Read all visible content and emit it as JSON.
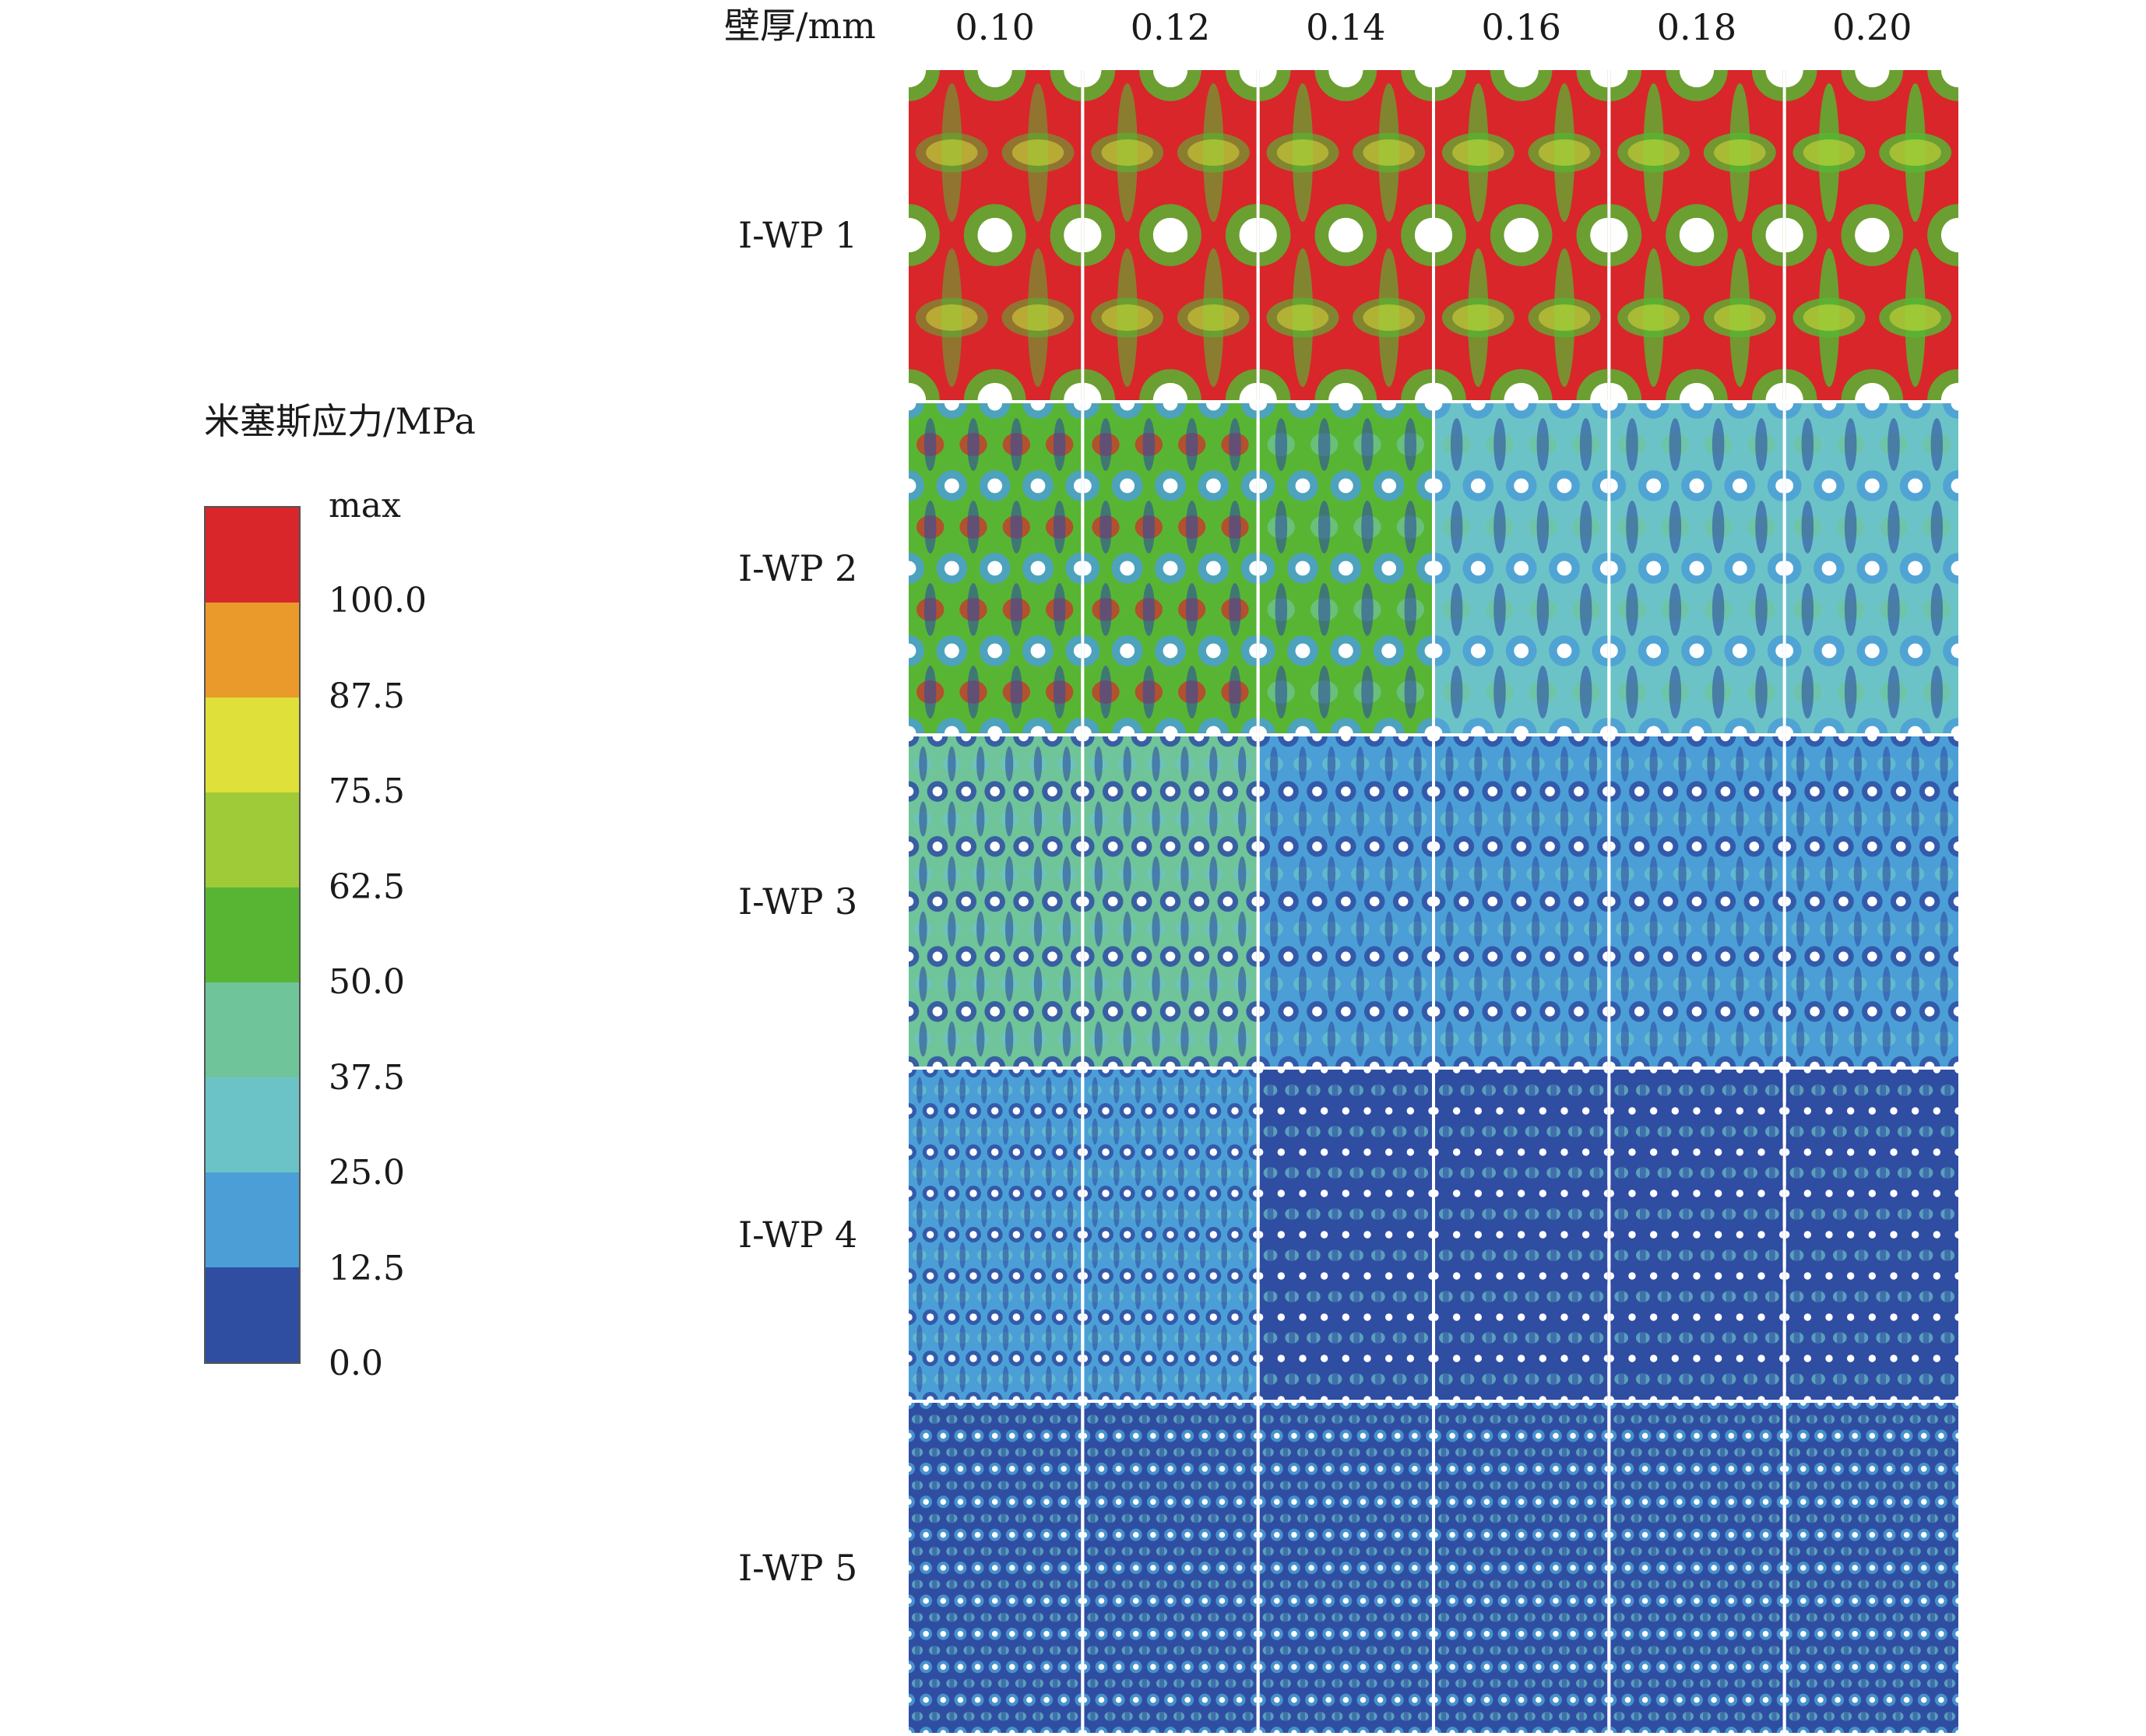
{
  "legend": {
    "title": "米塞斯应力/MPa",
    "labels": [
      "max",
      "100.0",
      "87.5",
      "75.5",
      "62.5",
      "50.0",
      "37.5",
      "25.0",
      "12.5",
      "0.0"
    ],
    "colors": [
      "#d8262b",
      "#e99a2b",
      "#dfe03a",
      "#9ecb37",
      "#58b533",
      "#6fc49a",
      "#6cc3c7",
      "#4b9fd6",
      "#2f4ea2"
    ]
  },
  "header": {
    "axis_label": "壁厚/mm",
    "thicknesses": [
      "0.10",
      "0.12",
      "0.14",
      "0.16",
      "0.18",
      "0.20"
    ]
  },
  "rows": [
    {
      "label": "I-WP 1",
      "cells": 2
    },
    {
      "label": "I-WP 2",
      "cells": 4
    },
    {
      "label": "I-WP 3",
      "cells": 6
    },
    {
      "label": "I-WP 4",
      "cells": 8
    },
    {
      "label": "I-WP 5",
      "cells": 10
    }
  ]
}
